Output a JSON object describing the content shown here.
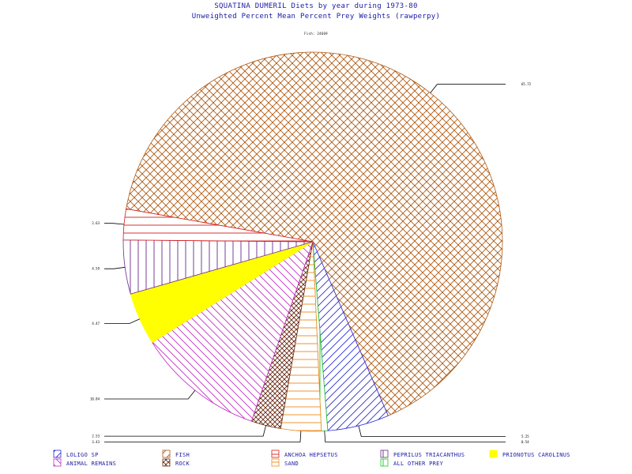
{
  "titles": {
    "line1": "SQUATINA DUMERIL Diets by year during 1973-80",
    "line2": "Unweighted Percent Mean Percent Prey  Weights (rawperpy)",
    "subtitle": "Fish: 24669"
  },
  "chart_data": {
    "type": "pie",
    "start_angle_deg": 170,
    "slices": [
      {
        "name": "FISH",
        "value": 65.72,
        "label": "65.72",
        "color": "#b05a12",
        "pattern": "crosshatch"
      },
      {
        "name": "LOLIGO SP",
        "value": 5.25,
        "label": "5.25",
        "color": "#2b2bd6",
        "pattern": "diag-up"
      },
      {
        "name": "ALL OTHER PREY",
        "value": 0.54,
        "label": "0.54",
        "color": "#22c522",
        "pattern": "vertical"
      },
      {
        "name": "SAND",
        "value": 3.43,
        "label": "3.43",
        "color": "#f08a1a",
        "pattern": "horizontal"
      },
      {
        "name": "ROCK",
        "value": 2.53,
        "label": "2.53",
        "color": "#6a2a14",
        "pattern": "crosshatch-fine"
      },
      {
        "name": "ANIMAL REMAINS",
        "value": 10.84,
        "label": "10.84",
        "color": "#c22ec2",
        "pattern": "diag-down"
      },
      {
        "name": "PRIONOTUS CAROLINUS",
        "value": 4.47,
        "label": "4.47",
        "color": "#ffff00",
        "pattern": "solid"
      },
      {
        "name": "PEPRILUS TRIACANTHUS",
        "value": 4.59,
        "label": "4.59",
        "color": "#6a2a8a",
        "pattern": "vertical"
      },
      {
        "name": "ANCHOA HEPSETUS",
        "value": 2.63,
        "label": "2.63",
        "color": "#d81a1a",
        "pattern": "horizontal"
      }
    ],
    "legend": [
      {
        "name": "LOLIGO SP",
        "pattern": "diag-up",
        "color": "#2b2bd6"
      },
      {
        "name": "FISH",
        "pattern": "diag-up",
        "color": "#b05a12"
      },
      {
        "name": "ANCHOA HEPSETUS",
        "pattern": "horizontal",
        "color": "#d81a1a"
      },
      {
        "name": "PEPRILUS TRIACANTHUS",
        "pattern": "vertical",
        "color": "#6a2a8a"
      },
      {
        "name": "PRIONOTUS CAROLINUS",
        "pattern": "solid",
        "color": "#ffff00"
      },
      {
        "name": "ANIMAL REMAINS",
        "pattern": "diag-down",
        "color": "#c22ec2"
      },
      {
        "name": "ROCK",
        "pattern": "crosshatch",
        "color": "#6a2a14"
      },
      {
        "name": "SAND",
        "pattern": "horizontal",
        "color": "#f08a1a"
      },
      {
        "name": "ALL OTHER PREY",
        "pattern": "vertical",
        "color": "#22c522"
      }
    ],
    "legend_placement": "bottom"
  }
}
